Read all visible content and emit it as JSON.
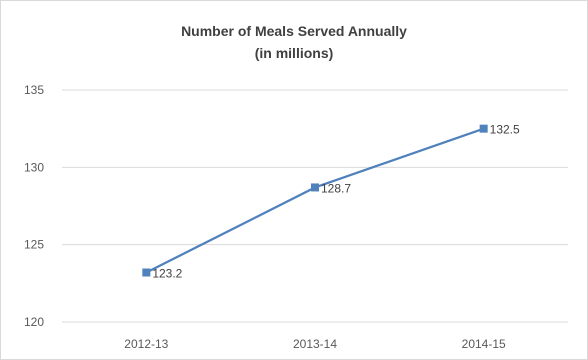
{
  "chart_data": {
    "type": "line",
    "title": "Number of Meals Served Annually",
    "subtitle": "(in millions)",
    "categories": [
      "2012-13",
      "2013-14",
      "2014-15"
    ],
    "series": [
      {
        "values": [
          123.2,
          128.7,
          132.5
        ],
        "labels": [
          "123.2",
          "128.7",
          "132.5"
        ],
        "color": "#4f81bd"
      }
    ],
    "ylim": [
      120,
      135
    ],
    "yticks": [
      120,
      125,
      130,
      135
    ],
    "ytick_labels": [
      "120",
      "125",
      "130",
      "135"
    ],
    "grid": true,
    "legend": "none"
  }
}
